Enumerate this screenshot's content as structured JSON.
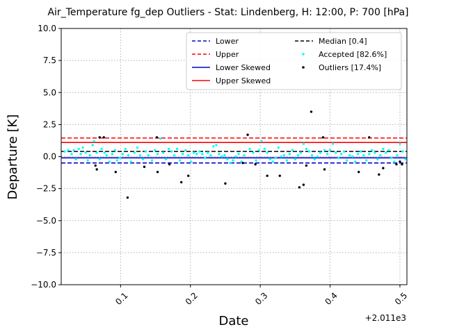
{
  "chart_data": {
    "type": "scatter",
    "title": "Air_Temperature fg_dep Outliers - Stat: Lindenberg, H: 12:00, P: 700 [hPa]",
    "xlabel": "Date",
    "ylabel": "Departure [K]",
    "x_offset_label": "+2.011e3",
    "xlim": [
      0.015,
      0.51
    ],
    "ylim": [
      -10.0,
      10.0
    ],
    "x_ticks": [
      0.1,
      0.2,
      0.3,
      0.4,
      0.5
    ],
    "x_tick_labels": [
      "0.1",
      "0.2",
      "0.3",
      "0.4",
      "0.5"
    ],
    "y_ticks": [
      -10,
      -7.5,
      -5,
      -2.5,
      0,
      2.5,
      5,
      7.5,
      10
    ],
    "y_tick_labels": [
      "−10.0",
      "−7.5",
      "−5.0",
      "−2.5",
      "0.0",
      "2.5",
      "5.0",
      "7.5",
      "10.0"
    ],
    "grid": true,
    "legend_position": "top-right",
    "legend": [
      {
        "label": "Lower",
        "color": "#0000cc",
        "style": "dashed"
      },
      {
        "label": "Upper",
        "color": "#ff0000",
        "style": "dashed"
      },
      {
        "label": "Lower Skewed",
        "color": "#0000cc",
        "style": "solid"
      },
      {
        "label": "Upper Skewed",
        "color": "#ff0000",
        "style": "solid"
      },
      {
        "label": "Median [0.4]",
        "color": "#000000",
        "style": "dashed"
      },
      {
        "label": "Accepted [82.6%]",
        "color": "#00ffff",
        "style": "marker"
      },
      {
        "label": "Outliers [17.4%]",
        "color": "#000000",
        "style": "marker"
      }
    ],
    "lines": {
      "lower": -0.5,
      "upper": 1.45,
      "lower_skewed": -0.1,
      "upper_skewed": 1.1,
      "median": 0.4
    },
    "series": [
      {
        "name": "Accepted [82.6%]",
        "color": "#00ffff",
        "points": [
          [
            0.02,
            0.4
          ],
          [
            0.025,
            0.5
          ],
          [
            0.03,
            0.2
          ],
          [
            0.033,
            0.5
          ],
          [
            0.036,
            -0.2
          ],
          [
            0.04,
            0.6
          ],
          [
            0.043,
            0.2
          ],
          [
            0.046,
            0.7
          ],
          [
            0.05,
            0.3
          ],
          [
            0.053,
            -0.3
          ],
          [
            0.056,
            0.1
          ],
          [
            0.06,
            0.9
          ],
          [
            0.062,
            1.2
          ],
          [
            0.066,
            0.3
          ],
          [
            0.07,
            -0.2
          ],
          [
            0.073,
            0.6
          ],
          [
            0.077,
            0.3
          ],
          [
            0.08,
            0.1
          ],
          [
            0.084,
            -0.4
          ],
          [
            0.088,
            0.2
          ],
          [
            0.092,
            0.5
          ],
          [
            0.095,
            -0.3
          ],
          [
            0.099,
            -0.1
          ],
          [
            0.103,
            0.2
          ],
          [
            0.107,
            0.6
          ],
          [
            0.111,
            0.1
          ],
          [
            0.115,
            -0.4
          ],
          [
            0.12,
            0.3
          ],
          [
            0.124,
            0.7
          ],
          [
            0.128,
            0.1
          ],
          [
            0.132,
            -0.2
          ],
          [
            0.136,
            0.4
          ],
          [
            0.14,
            0.1
          ],
          [
            0.145,
            -0.3
          ],
          [
            0.149,
            0.5
          ],
          [
            0.153,
            0.2
          ],
          [
            0.157,
            1.4
          ],
          [
            0.161,
            0.3
          ],
          [
            0.165,
            -0.2
          ],
          [
            0.169,
            0.6
          ],
          [
            0.173,
            0.4
          ],
          [
            0.177,
            0.1
          ],
          [
            0.181,
            0.6
          ],
          [
            0.185,
            -0.3
          ],
          [
            0.189,
            0.2
          ],
          [
            0.193,
            0.5
          ],
          [
            0.197,
            0.1
          ],
          [
            0.201,
            -0.4
          ],
          [
            0.205,
            0.3
          ],
          [
            0.209,
            0.2
          ],
          [
            0.213,
            0.4
          ],
          [
            0.217,
            0.2
          ],
          [
            0.221,
            -0.1
          ],
          [
            0.225,
            0.3
          ],
          [
            0.229,
            0.1
          ],
          [
            0.233,
            0.8
          ],
          [
            0.237,
            0.9
          ],
          [
            0.241,
            0.2
          ],
          [
            0.245,
            0.0
          ],
          [
            0.249,
            0.1
          ],
          [
            0.253,
            -0.2
          ],
          [
            0.257,
            -0.5
          ],
          [
            0.261,
            -0.3
          ],
          [
            0.265,
            0.0
          ],
          [
            0.269,
            0.2
          ],
          [
            0.273,
            -0.4
          ],
          [
            0.277,
            0.1
          ],
          [
            0.285,
            0.6
          ],
          [
            0.29,
            0.3
          ],
          [
            0.294,
            -0.3
          ],
          [
            0.298,
            0.5
          ],
          [
            0.302,
            1.2
          ],
          [
            0.306,
            0.6
          ],
          [
            0.31,
            0.3
          ],
          [
            0.314,
            -0.2
          ],
          [
            0.318,
            -0.4
          ],
          [
            0.322,
            -0.1
          ],
          [
            0.326,
            0.7
          ],
          [
            0.33,
            0.0
          ],
          [
            0.334,
            0.1
          ],
          [
            0.338,
            -0.3
          ],
          [
            0.342,
            0.2
          ],
          [
            0.346,
            0.5
          ],
          [
            0.35,
            -0.2
          ],
          [
            0.354,
            0.1
          ],
          [
            0.358,
            0.3
          ],
          [
            0.362,
            1.0
          ],
          [
            0.366,
            0.6
          ],
          [
            0.37,
            0.4
          ],
          [
            0.374,
            0.1
          ],
          [
            0.378,
            -0.2
          ],
          [
            0.382,
            0.0
          ],
          [
            0.386,
            0.3
          ],
          [
            0.392,
            0.5
          ],
          [
            0.396,
            0.2
          ],
          [
            0.4,
            0.5
          ],
          [
            0.404,
            1.0
          ],
          [
            0.408,
            0.3
          ],
          [
            0.412,
            -0.1
          ],
          [
            0.416,
            0.2
          ],
          [
            0.42,
            0.4
          ],
          [
            0.424,
            -0.3
          ],
          [
            0.428,
            0.1
          ],
          [
            0.432,
            0.0
          ],
          [
            0.436,
            -0.4
          ],
          [
            0.44,
            0.2
          ],
          [
            0.444,
            0.4
          ],
          [
            0.448,
            0.1
          ],
          [
            0.452,
            -0.3
          ],
          [
            0.456,
            0.2
          ],
          [
            0.46,
            0.5
          ],
          [
            0.464,
            0.3
          ],
          [
            0.468,
            -0.2
          ],
          [
            0.472,
            0.1
          ],
          [
            0.476,
            0.6
          ],
          [
            0.48,
            0.3
          ],
          [
            0.484,
            0.5
          ],
          [
            0.488,
            -0.1
          ],
          [
            0.492,
            -0.4
          ],
          [
            0.496,
            0.1
          ],
          [
            0.5,
            1.0
          ],
          [
            0.504,
            0.4
          ],
          [
            0.508,
            -0.2
          ]
        ]
      },
      {
        "name": "Outliers [17.4%]",
        "color": "#000000",
        "points": [
          [
            0.064,
            -0.7
          ],
          [
            0.066,
            -1.0
          ],
          [
            0.07,
            1.5
          ],
          [
            0.076,
            1.5
          ],
          [
            0.093,
            -1.2
          ],
          [
            0.11,
            -3.2
          ],
          [
            0.134,
            -0.8
          ],
          [
            0.152,
            1.5
          ],
          [
            0.153,
            -1.2
          ],
          [
            0.17,
            -0.6
          ],
          [
            0.187,
            -2.0
          ],
          [
            0.197,
            -1.5
          ],
          [
            0.25,
            -2.1
          ],
          [
            0.275,
            -0.5
          ],
          [
            0.282,
            1.7
          ],
          [
            0.293,
            -0.6
          ],
          [
            0.31,
            -1.5
          ],
          [
            0.328,
            -1.5
          ],
          [
            0.356,
            -2.4
          ],
          [
            0.362,
            -2.2
          ],
          [
            0.366,
            -0.7
          ],
          [
            0.373,
            3.5
          ],
          [
            0.39,
            1.5
          ],
          [
            0.392,
            -1.0
          ],
          [
            0.441,
            -1.2
          ],
          [
            0.456,
            1.5
          ],
          [
            0.47,
            -1.4
          ],
          [
            0.476,
            -0.9
          ],
          [
            0.495,
            -0.6
          ],
          [
            0.5,
            -0.4
          ],
          [
            0.503,
            -0.6
          ]
        ]
      }
    ]
  }
}
